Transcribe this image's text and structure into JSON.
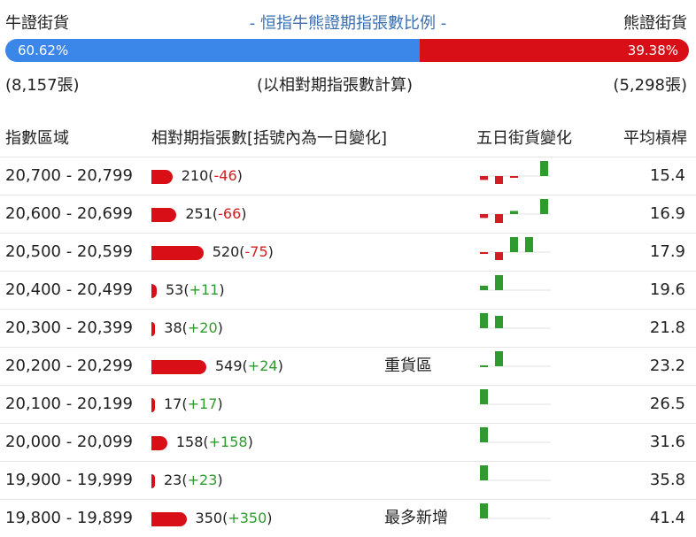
{
  "header": {
    "bull_label": "牛證街貨",
    "title": "- 恒指牛熊證期指張數比例 -",
    "bear_label": "熊證街貨"
  },
  "ratio": {
    "bull_pct": "60.62%",
    "bear_pct": "39.38%",
    "bull_fraction": 0.6062,
    "bull_contracts": "(8,157張)",
    "note": "(以相對期指張數計算)",
    "bear_contracts": "(5,298張)"
  },
  "columns": {
    "range": "指數區域",
    "contracts": "相對期指張數[括號內為一日變化]",
    "five_day": "五日街貨變化",
    "avg_leverage": "平均槓桿"
  },
  "colors": {
    "bull": "#3b86e9",
    "bear": "#d90f17",
    "up": "#2f9a2f",
    "down": "#d01e22"
  },
  "rows": [
    {
      "range": "20,700 - 20,799",
      "contracts": 210,
      "count": "210",
      "change": "-46",
      "zone": "",
      "avg": "15.4",
      "five_day": [
        -0.22,
        -0.45,
        -0.08,
        0.0,
        0.85
      ]
    },
    {
      "range": "20,600 - 20,699",
      "contracts": 251,
      "count": "251",
      "change": "-66",
      "zone": "",
      "avg": "16.9",
      "five_day": [
        -0.22,
        -0.5,
        0.18,
        0.0,
        0.85
      ]
    },
    {
      "range": "20,500 - 20,599",
      "contracts": 520,
      "count": "520",
      "change": "-75",
      "zone": "",
      "avg": "17.9",
      "five_day": [
        -0.1,
        -0.45,
        0.85,
        0.85,
        0.0
      ]
    },
    {
      "range": "20,400 - 20,499",
      "contracts": 53,
      "count": "53",
      "change": "+11",
      "zone": "",
      "avg": "19.6",
      "five_day": [
        0.25,
        0.85,
        0.0,
        0.0,
        0.0
      ]
    },
    {
      "range": "20,300 - 20,399",
      "contracts": 38,
      "count": "38",
      "change": "+20",
      "zone": "",
      "avg": "21.8",
      "five_day": [
        0.85,
        0.7,
        0.0,
        0.0,
        0.0
      ]
    },
    {
      "range": "20,200 - 20,299",
      "contracts": 549,
      "count": "549",
      "change": "+24",
      "zone": "重貨區",
      "avg": "23.2",
      "five_day": [
        0.05,
        0.85,
        0.0,
        0.0,
        0.0
      ]
    },
    {
      "range": "20,100 - 20,199",
      "contracts": 17,
      "count": "17",
      "change": "+17",
      "zone": "",
      "avg": "26.5",
      "five_day": [
        0.85,
        0.0,
        0.0,
        0.0,
        0.0
      ]
    },
    {
      "range": "20,000 - 20,099",
      "contracts": 158,
      "count": "158",
      "change": "+158",
      "zone": "",
      "avg": "31.6",
      "five_day": [
        0.85,
        0.0,
        0.0,
        0.0,
        0.0
      ]
    },
    {
      "range": "19,900 - 19,999",
      "contracts": 23,
      "count": "23",
      "change": "+23",
      "zone": "",
      "avg": "35.8",
      "five_day": [
        0.85,
        0.0,
        0.0,
        0.0,
        0.0
      ]
    },
    {
      "range": "19,800 - 19,899",
      "contracts": 350,
      "count": "350",
      "change": "+350",
      "zone": "最多新增",
      "avg": "41.4",
      "five_day": [
        0.85,
        0.0,
        0.0,
        0.0,
        0.0
      ]
    }
  ]
}
